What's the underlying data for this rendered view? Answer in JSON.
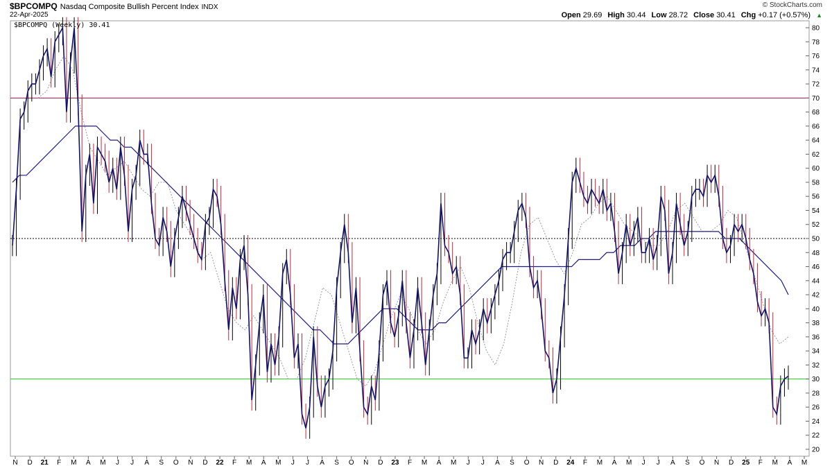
{
  "header": {
    "symbol": "$BPCOMPQ",
    "description": "Nasdaq Composite Bullish Percent Index",
    "exchange": "INDX",
    "date": "22-Apr-2025",
    "brand": "© StockCharts.com",
    "stats": {
      "open_label": "Open",
      "open": "29.69",
      "high_label": "High",
      "high": "30.44",
      "low_label": "Low",
      "low": "28.72",
      "close_label": "Close",
      "close": "30.41",
      "chg_label": "Chg",
      "chg": "+0.17 (+0.57%)",
      "chg_arrow": "▲"
    }
  },
  "colors": {
    "price": "#0f1170",
    "up_bar": "#000000",
    "down_bar": "#c0283a",
    "ma_long": "#1c1c84",
    "ma_short": "#9a9a9a",
    "line_70": "#8b1a4a",
    "line_30": "#22cc22",
    "line_50": "#000000",
    "grid": "#dddddd"
  },
  "chart_data": {
    "type": "line",
    "plot_label": "$BPCOMPQ (Weekly) 30.41",
    "ylim": [
      19,
      81
    ],
    "y_ticks": [
      20,
      22,
      24,
      26,
      28,
      30,
      32,
      34,
      36,
      38,
      40,
      42,
      44,
      46,
      48,
      50,
      52,
      54,
      56,
      58,
      60,
      62,
      64,
      66,
      68,
      70,
      72,
      74,
      76,
      78,
      80
    ],
    "x_months": [
      "N",
      "D",
      "21",
      "F",
      "M",
      "A",
      "M",
      "J",
      "J",
      "A",
      "S",
      "O",
      "N",
      "D",
      "22",
      "F",
      "M",
      "A",
      "M",
      "J",
      "J",
      "A",
      "S",
      "O",
      "N",
      "D",
      "23",
      "F",
      "M",
      "A",
      "M",
      "J",
      "J",
      "A",
      "S",
      "O",
      "N",
      "D",
      "24",
      "F",
      "M",
      "A",
      "M",
      "J",
      "J",
      "A",
      "S",
      "O",
      "N",
      "D",
      "25",
      "F",
      "M",
      "A",
      "M"
    ],
    "reference_lines": [
      {
        "value": 70,
        "style": "solid",
        "color_key": "line_70"
      },
      {
        "value": 50,
        "style": "dotted",
        "color_key": "line_50"
      },
      {
        "value": 30,
        "style": "solid",
        "color_key": "line_30"
      }
    ],
    "price_series": [
      49,
      57,
      67,
      68,
      71,
      72,
      72,
      74,
      76,
      77,
      73,
      78,
      79,
      80,
      68,
      75,
      80,
      69,
      51,
      59,
      62,
      55,
      63,
      62,
      61,
      58,
      60,
      57,
      63,
      59,
      51,
      57,
      59,
      64,
      62,
      62,
      55,
      50,
      49,
      53,
      51,
      46,
      50,
      53,
      56,
      54,
      52,
      50,
      48,
      47,
      52,
      53,
      57,
      56,
      52,
      44,
      37,
      43,
      40,
      47,
      49,
      42,
      27,
      32,
      38,
      42,
      31,
      35,
      32,
      36,
      45,
      47,
      42,
      33,
      35,
      25,
      23,
      26,
      36,
      29,
      26,
      29,
      30,
      34,
      43,
      48,
      52,
      48,
      38,
      43,
      34,
      26,
      25,
      29,
      27,
      34,
      42,
      44,
      38,
      36,
      39,
      44,
      38,
      33,
      37,
      43,
      38,
      32,
      37,
      42,
      45,
      55,
      49,
      48,
      45,
      46,
      42,
      33,
      33,
      37,
      35,
      37,
      40,
      38,
      40,
      42,
      44,
      47,
      48,
      48,
      51,
      54,
      55,
      53,
      46,
      43,
      44,
      40,
      34,
      33,
      28,
      30,
      36,
      42,
      50,
      58,
      60,
      58,
      56,
      55,
      57,
      56,
      55,
      57,
      54,
      55,
      51,
      45,
      48,
      52,
      49,
      51,
      53,
      48,
      48,
      50,
      47,
      49,
      56,
      54,
      45,
      48,
      55,
      52,
      49,
      51,
      56,
      57,
      57,
      56,
      59,
      58,
      59,
      56,
      50,
      48,
      49,
      52,
      51,
      52,
      50,
      47,
      45,
      41,
      39,
      40,
      38,
      26,
      25,
      29,
      30,
      30.41
    ],
    "ma_long_series": [
      58,
      59,
      59,
      60,
      61,
      62,
      63,
      64,
      65,
      66,
      66,
      66,
      66,
      65,
      64,
      64,
      63,
      63,
      62,
      61,
      60,
      59,
      58,
      57,
      56,
      55,
      54,
      53,
      52,
      51,
      50,
      49,
      48,
      47,
      46,
      45,
      44,
      43,
      42,
      41,
      40,
      39,
      38,
      37,
      37,
      36,
      35,
      35,
      35,
      36,
      37,
      38,
      39,
      40,
      40,
      40,
      39,
      38,
      37,
      37,
      37,
      38,
      38,
      39,
      40,
      41,
      42,
      43,
      44,
      45,
      46,
      46,
      46,
      46,
      46,
      46,
      46,
      46,
      46,
      46,
      46,
      47,
      47,
      47,
      47,
      48,
      48,
      49,
      49,
      49,
      50,
      50,
      51,
      51,
      51,
      51,
      51,
      51,
      51,
      51,
      51,
      51,
      50,
      50,
      50,
      49,
      48,
      47,
      46,
      45,
      44,
      42
    ],
    "ma_short_series": [
      70,
      71,
      74,
      76,
      74,
      68,
      63,
      61,
      59,
      60,
      61,
      59,
      57,
      56,
      58,
      58,
      54,
      52,
      50,
      47,
      48,
      44,
      40,
      38,
      37,
      39,
      37,
      35,
      33,
      30,
      30,
      33,
      38,
      43,
      42,
      38,
      34,
      30,
      29,
      31,
      35,
      39,
      42,
      40,
      37,
      35,
      37,
      41,
      44,
      46,
      43,
      38,
      34,
      32,
      35,
      41,
      48,
      52,
      53,
      50,
      47,
      45,
      48,
      52,
      53,
      55,
      56,
      54,
      52,
      51,
      50,
      49,
      49,
      51,
      54,
      55,
      53,
      51,
      51,
      52,
      54,
      53,
      49,
      45,
      41,
      37,
      35,
      36
    ]
  }
}
